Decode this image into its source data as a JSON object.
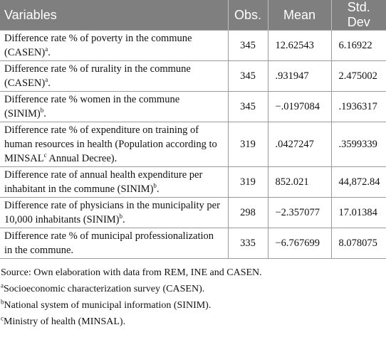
{
  "table": {
    "header": [
      "Variables",
      "Obs.",
      "Mean",
      "Std. Dev"
    ],
    "rows": [
      [
        {
          "text": "Difference rate % of poverty in the commune (CASEN)",
          "sup": "a",
          "end": "."
        },
        "345",
        "12.62543",
        "6.16922"
      ],
      [
        {
          "text": "Difference rate % of rurality in the commune (CASEN)",
          "sup": "a",
          "end": "."
        },
        "345",
        ".931947",
        "2.475002"
      ],
      [
        {
          "text": "Difference rate % women in the commune (SINIM)",
          "sup": "b",
          "end": "."
        },
        "345",
        "−.0197084",
        ".1936317"
      ],
      [
        {
          "text": "Difference rate % of expenditure on training of human resources in health (Population according to MINSAL",
          "sup": "c",
          "end": " Annual Decree)."
        },
        "319",
        ".0427247",
        ".3599339"
      ],
      [
        {
          "text": "Difference rate of annual health expenditure per inhabitant in the commune (SINIM)",
          "sup": "b",
          "end": "."
        },
        "319",
        "852.021",
        "44,872.84"
      ],
      [
        {
          "text": "Difference rate of physicians in the municipality per 10,000 inhabitants (SINIM)",
          "sup": "b",
          "end": "."
        },
        "298",
        "−2.357077",
        "17.01384"
      ],
      [
        {
          "text": "Difference rate % of municipal professionalization in the commune."
        },
        "335",
        "−6.767699",
        "8.078075"
      ]
    ]
  },
  "notes": {
    "source": "Source: Own elaboration with data from REM, INE and CASEN.",
    "footnotes": [
      {
        "sup": "a",
        "text": "Socioeconomic characterization survey (CASEN)."
      },
      {
        "sup": "b",
        "text": "National system of municipal information (SINIM)."
      },
      {
        "sup": "c",
        "text": "Ministry of health (MINSAL)."
      }
    ]
  }
}
